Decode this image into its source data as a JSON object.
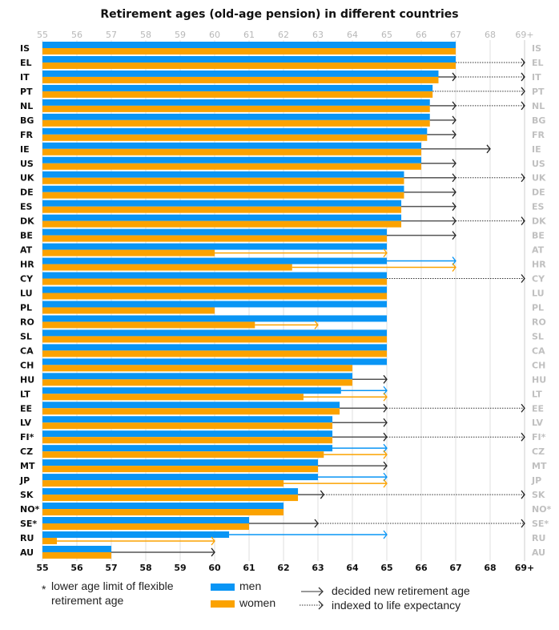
{
  "chart_data": {
    "type": "bar",
    "orientation": "horizontal",
    "title": "Retirement ages (old-age pension) in different countries",
    "xlim": [
      55,
      69
    ],
    "x_ticks": [
      "55",
      "56",
      "57",
      "58",
      "59",
      "60",
      "61",
      "62",
      "63",
      "64",
      "65",
      "66",
      "67",
      "68",
      "69+"
    ],
    "grid": true,
    "colors": {
      "men": "#0995f5",
      "women": "#fba200",
      "decided": "#333333",
      "indexed": "#333333",
      "right_label": "#c0c0c0"
    },
    "legend": {
      "position": "bottom",
      "footnote_marker": "*",
      "footnote_line1": "lower age limit of flexible",
      "footnote_line2": "retirement age",
      "men": "men",
      "women": "women",
      "decided": "decided new retirement age",
      "indexed": "indexed to life expectancy"
    },
    "categories": [
      "IS",
      "EL",
      "IT",
      "PT",
      "NL",
      "BG",
      "FR",
      "IE",
      "US",
      "UK",
      "DE",
      "ES",
      "DK",
      "BE",
      "AT",
      "HR",
      "CY",
      "LU",
      "PL",
      "RO",
      "SL",
      "CA",
      "CH",
      "HU",
      "LT",
      "EE",
      "LV",
      "FI*",
      "CZ",
      "MT",
      "JP",
      "SK",
      "NO*",
      "SE*",
      "RU",
      "AU"
    ],
    "series": [
      {
        "name": "men",
        "values": [
          67,
          67,
          66.5,
          66.33,
          66.25,
          66.25,
          66.17,
          66,
          66,
          65.5,
          65.5,
          65.42,
          65.42,
          65,
          65,
          65,
          65,
          65,
          65,
          65,
          65,
          65,
          65,
          64,
          63.67,
          63.63,
          63.42,
          63.42,
          63.42,
          63,
          63,
          62.42,
          62,
          61,
          60.42,
          57
        ]
      },
      {
        "name": "women",
        "values": [
          67,
          67,
          66.5,
          66.33,
          66.25,
          66.25,
          66.17,
          66,
          66,
          65.5,
          65.5,
          65.42,
          65.42,
          65,
          60,
          62.25,
          65,
          65,
          60,
          61.17,
          65,
          65,
          64,
          64,
          62.58,
          63.63,
          63.42,
          63.42,
          63.17,
          63,
          62,
          62.42,
          62,
          61,
          55.42,
          57
        ]
      }
    ],
    "arrows": [
      {
        "country": "EL",
        "who": "both",
        "type": "indexed",
        "from": 67,
        "to": 69
      },
      {
        "country": "IT",
        "who": "both",
        "type": "decided",
        "from": 66.5,
        "to": 67
      },
      {
        "country": "IT",
        "who": "both",
        "type": "indexed",
        "from": 67,
        "to": 69
      },
      {
        "country": "PT",
        "who": "both",
        "type": "indexed",
        "from": 66.33,
        "to": 69
      },
      {
        "country": "NL",
        "who": "both",
        "type": "decided",
        "from": 66.25,
        "to": 67
      },
      {
        "country": "NL",
        "who": "both",
        "type": "indexed",
        "from": 67,
        "to": 69
      },
      {
        "country": "BG",
        "who": "both",
        "type": "decided",
        "from": 66.25,
        "to": 67
      },
      {
        "country": "FR",
        "who": "both",
        "type": "decided",
        "from": 66.17,
        "to": 67
      },
      {
        "country": "IE",
        "who": "both",
        "type": "decided",
        "from": 66,
        "to": 68
      },
      {
        "country": "US",
        "who": "both",
        "type": "decided",
        "from": 66,
        "to": 67
      },
      {
        "country": "UK",
        "who": "both",
        "type": "decided",
        "from": 65.5,
        "to": 67
      },
      {
        "country": "UK",
        "who": "both",
        "type": "indexed",
        "from": 67,
        "to": 69
      },
      {
        "country": "DE",
        "who": "both",
        "type": "decided",
        "from": 65.5,
        "to": 67
      },
      {
        "country": "ES",
        "who": "both",
        "type": "decided",
        "from": 65.42,
        "to": 67
      },
      {
        "country": "DK",
        "who": "both",
        "type": "decided",
        "from": 65.42,
        "to": 67
      },
      {
        "country": "DK",
        "who": "both",
        "type": "indexed",
        "from": 67,
        "to": 69
      },
      {
        "country": "BE",
        "who": "both",
        "type": "decided",
        "from": 65,
        "to": 67
      },
      {
        "country": "AT",
        "who": "women",
        "type": "decided",
        "from": 60,
        "to": 65
      },
      {
        "country": "HR",
        "who": "men",
        "type": "decided",
        "from": 65,
        "to": 67
      },
      {
        "country": "HR",
        "who": "women",
        "type": "decided",
        "from": 62.25,
        "to": 67
      },
      {
        "country": "CY",
        "who": "both",
        "type": "indexed",
        "from": 65,
        "to": 69
      },
      {
        "country": "RO",
        "who": "women",
        "type": "decided",
        "from": 61.17,
        "to": 63
      },
      {
        "country": "HU",
        "who": "both",
        "type": "decided",
        "from": 64,
        "to": 65
      },
      {
        "country": "LT",
        "who": "men",
        "type": "decided",
        "from": 63.67,
        "to": 65
      },
      {
        "country": "LT",
        "who": "women",
        "type": "decided",
        "from": 62.58,
        "to": 65
      },
      {
        "country": "EE",
        "who": "both",
        "type": "decided",
        "from": 63.63,
        "to": 65
      },
      {
        "country": "EE",
        "who": "both",
        "type": "indexed",
        "from": 65,
        "to": 69
      },
      {
        "country": "LV",
        "who": "both",
        "type": "decided",
        "from": 63.42,
        "to": 65
      },
      {
        "country": "FI*",
        "who": "both",
        "type": "decided",
        "from": 63.42,
        "to": 65
      },
      {
        "country": "FI*",
        "who": "both",
        "type": "indexed",
        "from": 65,
        "to": 69
      },
      {
        "country": "CZ",
        "who": "men",
        "type": "decided",
        "from": 63.42,
        "to": 65
      },
      {
        "country": "CZ",
        "who": "women",
        "type": "decided",
        "from": 63.17,
        "to": 65
      },
      {
        "country": "MT",
        "who": "both",
        "type": "decided",
        "from": 63,
        "to": 65
      },
      {
        "country": "JP",
        "who": "men",
        "type": "decided",
        "from": 63,
        "to": 65
      },
      {
        "country": "JP",
        "who": "women",
        "type": "decided",
        "from": 62,
        "to": 65
      },
      {
        "country": "SK",
        "who": "both",
        "type": "decided",
        "from": 62.42,
        "to": 63.17
      },
      {
        "country": "SK",
        "who": "both",
        "type": "indexed",
        "from": 63.17,
        "to": 69
      },
      {
        "country": "SE*",
        "who": "both",
        "type": "decided",
        "from": 61,
        "to": 63
      },
      {
        "country": "SE*",
        "who": "both",
        "type": "indexed",
        "from": 63,
        "to": 69
      },
      {
        "country": "RU",
        "who": "men",
        "type": "decided",
        "from": 60.42,
        "to": 65
      },
      {
        "country": "RU",
        "who": "women",
        "type": "decided",
        "from": 55.42,
        "to": 60
      },
      {
        "country": "AU",
        "who": "both",
        "type": "decided",
        "from": 57,
        "to": 60
      }
    ]
  }
}
